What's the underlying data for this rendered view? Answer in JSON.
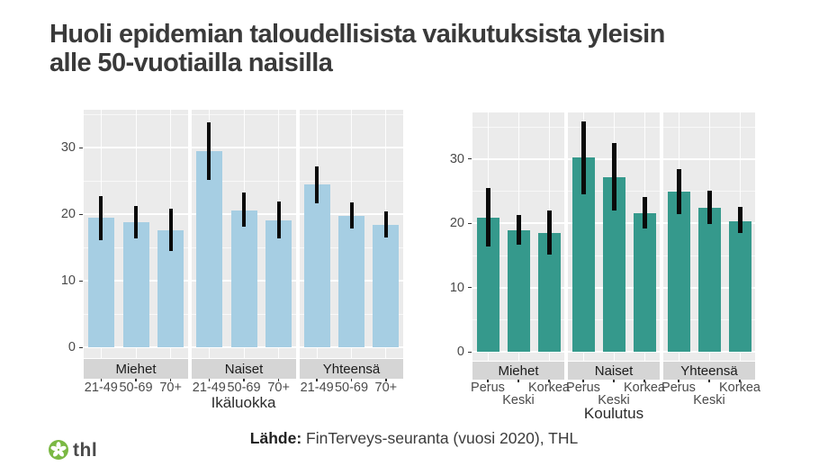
{
  "title": {
    "line1": "Huoli epidemian taloudellisista vaikutuksista yleisin",
    "line2": "alle 50-vuotiailla naisilla"
  },
  "source": {
    "label": "Lähde:",
    "text": " FinTerveys-seuranta (vuosi 2020), THL"
  },
  "logo": {
    "text": "thl",
    "icon": "thl-flower-icon",
    "green": "#7AB843"
  },
  "colors": {
    "panel_background": "#EBEBEB",
    "strip_background": "#D5D5D5",
    "grid": "#FFFFFF",
    "error_bar": "#0A0A0A",
    "left_bar": "#A6CEE3",
    "right_bar": "#35998C",
    "title_text": "#3A3A3A"
  },
  "chart_data": [
    {
      "type": "bar",
      "title": "",
      "xlabel": "Ikäluokka",
      "ylabel": "",
      "facets": [
        "Miehet",
        "Naiset",
        "Yhteensä"
      ],
      "categories": [
        "21-49",
        "50-69",
        "70+"
      ],
      "yticks": [
        0,
        10,
        20,
        30
      ],
      "ylim": [
        0,
        35.5
      ],
      "grid": true,
      "legend": false,
      "bar_color": "#A6CEE3",
      "error_bars": true,
      "series": [
        {
          "facet": "Miehet",
          "values": [
            19.4,
            18.8,
            17.6
          ],
          "ci_low": [
            16.1,
            16.4,
            14.5
          ],
          "ci_high": [
            22.7,
            21.2,
            20.8
          ]
        },
        {
          "facet": "Naiset",
          "values": [
            29.4,
            20.6,
            19.0
          ],
          "ci_low": [
            25.1,
            18.1,
            16.3
          ],
          "ci_high": [
            33.8,
            23.3,
            21.9
          ]
        },
        {
          "facet": "Yhteensä",
          "values": [
            24.4,
            19.7,
            18.4
          ],
          "ci_low": [
            21.6,
            17.8,
            16.5
          ],
          "ci_high": [
            27.2,
            21.7,
            20.4
          ]
        }
      ]
    },
    {
      "type": "bar",
      "title": "",
      "xlabel": "Koulutus",
      "ylabel": "",
      "facets": [
        "Miehet",
        "Naiset",
        "Yhteensä"
      ],
      "categories": [
        "Perus",
        "Keski",
        "Korkea"
      ],
      "yticks": [
        0,
        10,
        20,
        30
      ],
      "ylim": [
        0,
        37
      ],
      "grid": true,
      "legend": false,
      "bar_color": "#35998C",
      "error_bars": true,
      "series": [
        {
          "facet": "Miehet",
          "values": [
            20.8,
            18.9,
            18.4
          ],
          "ci_low": [
            16.4,
            16.6,
            15.1
          ],
          "ci_high": [
            25.4,
            21.2,
            21.9
          ]
        },
        {
          "facet": "Naiset",
          "values": [
            30.2,
            27.2,
            21.6
          ],
          "ci_low": [
            24.5,
            22.0,
            19.1
          ],
          "ci_high": [
            35.8,
            32.4,
            24.1
          ]
        },
        {
          "facet": "Yhteensä",
          "values": [
            24.9,
            22.4,
            20.3
          ],
          "ci_low": [
            21.4,
            19.8,
            18.4
          ],
          "ci_high": [
            28.4,
            25.1,
            22.5
          ]
        }
      ]
    }
  ]
}
